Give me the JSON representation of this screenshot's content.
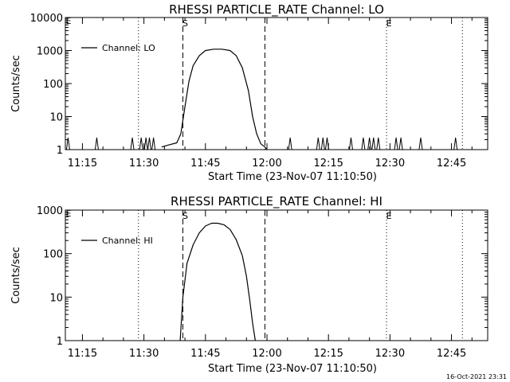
{
  "chart_data": [
    {
      "type": "line",
      "title": "RHESSI PARTICLE_RATE Channel: LO",
      "xlabel": "Start Time (23-Nov-07 11:10:50)",
      "ylabel": "Counts/sec",
      "yscale": "log",
      "ylim": [
        1,
        10000
      ],
      "xlim_minutes_after_start": [
        0,
        103
      ],
      "x_ticks": [
        "11:15",
        "11:30",
        "11:45",
        "12:00",
        "12:15",
        "12:30",
        "12:45"
      ],
      "y_ticks": [
        "1",
        "10",
        "100",
        "1000",
        "10000"
      ],
      "legend": {
        "position": "top-left",
        "entries": [
          "Channel: LO"
        ]
      },
      "vlines": [
        {
          "time": "11:28:40",
          "style": "dotted",
          "label": ""
        },
        {
          "time": "11:39:30",
          "style": "dashed",
          "label": "S"
        },
        {
          "time": "11:59:30",
          "style": "dashed",
          "label": ""
        },
        {
          "time": "12:29:10",
          "style": "dotted",
          "label": "E"
        },
        {
          "time": "12:47:40",
          "style": "dotted",
          "label": ""
        }
      ],
      "corner_marker": "E",
      "series": [
        {
          "x": [
            "11:34:20",
            "11:36:10",
            "11:38:00",
            "11:39:00",
            "11:40:00",
            "11:41:00",
            "11:42:00",
            "11:43:30",
            "11:45:00",
            "11:47:00",
            "11:49:00",
            "11:51:00",
            "11:52:30",
            "11:54:00",
            "11:55:30",
            "11:56:30",
            "11:57:30",
            "11:58:30",
            "11:59:30",
            "12:00:00"
          ],
          "values": [
            1.2,
            1.4,
            1.6,
            3,
            20,
            120,
            350,
            700,
            1000,
            1100,
            1100,
            1000,
            700,
            300,
            60,
            10,
            3,
            1.5,
            1.2,
            1
          ]
        }
      ],
      "spikes": [
        "11:11:30",
        "11:18:30",
        "11:27:10",
        "11:29:20",
        "11:30:30",
        "11:31:20",
        "11:32:20",
        "12:05:40",
        "12:12:30",
        "12:13:40",
        "12:14:40",
        "12:20:30",
        "12:23:30",
        "12:25:00",
        "12:26:00",
        "12:27:10",
        "12:31:30",
        "12:32:40",
        "12:37:30",
        "12:46:00"
      ]
    },
    {
      "type": "line",
      "title": "RHESSI PARTICLE_RATE Channel: HI",
      "xlabel": "Start Time (23-Nov-07 11:10:50)",
      "ylabel": "Counts/sec",
      "yscale": "log",
      "ylim": [
        1,
        1000
      ],
      "xlim_minutes_after_start": [
        0,
        103
      ],
      "x_ticks": [
        "11:15",
        "11:30",
        "11:45",
        "12:00",
        "12:15",
        "12:30",
        "12:45"
      ],
      "y_ticks": [
        "1",
        "10",
        "100",
        "1000"
      ],
      "legend": {
        "position": "top-left",
        "entries": [
          "Channel: HI"
        ]
      },
      "vlines": [
        {
          "time": "11:28:40",
          "style": "dotted",
          "label": ""
        },
        {
          "time": "11:39:30",
          "style": "dashed",
          "label": "S"
        },
        {
          "time": "11:59:30",
          "style": "dashed",
          "label": ""
        },
        {
          "time": "12:29:10",
          "style": "dotted",
          "label": "E"
        },
        {
          "time": "12:47:40",
          "style": "dotted",
          "label": ""
        }
      ],
      "corner_marker": "E",
      "series": [
        {
          "x": [
            "11:38:50",
            "11:39:30",
            "11:40:30",
            "11:42:00",
            "11:43:30",
            "11:45:00",
            "11:46:30",
            "11:48:00",
            "11:49:30",
            "11:51:00",
            "11:52:30",
            "11:54:00",
            "11:55:00",
            "11:55:50",
            "11:56:30",
            "11:57:10"
          ],
          "values": [
            1,
            10,
            60,
            160,
            300,
            430,
            500,
            500,
            460,
            360,
            210,
            90,
            30,
            8,
            2.5,
            1
          ]
        }
      ]
    }
  ],
  "footer": {
    "timestamp": "16-Oct-2021 23:31"
  }
}
